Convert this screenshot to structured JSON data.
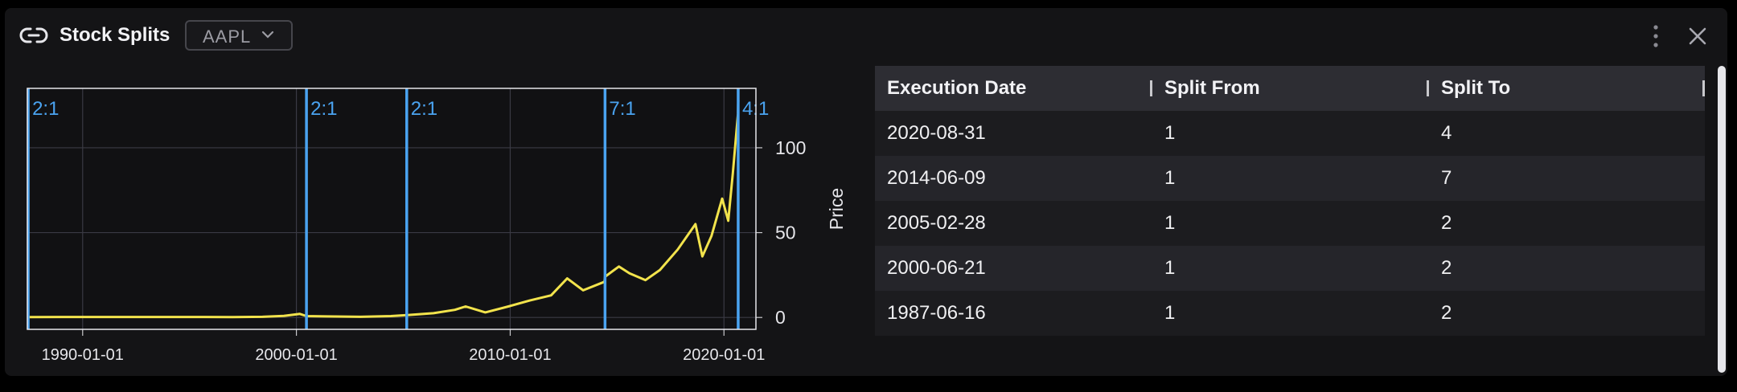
{
  "header": {
    "title": "Stock Splits",
    "ticker": "AAPL",
    "icons": {
      "link": "link-icon",
      "chevron": "chevron-down-icon",
      "menu": "kebab-menu-icon",
      "close": "close-icon"
    }
  },
  "chart_data": {
    "type": "line",
    "title": "",
    "xlabel": "",
    "ylabel": "Price",
    "x_ticks": [
      "1990-01-01",
      "2000-01-01",
      "2010-01-01",
      "2020-01-01"
    ],
    "y_ticks": [
      0,
      50,
      100
    ],
    "xlim": [
      "1987-06-01",
      "2021-06-30"
    ],
    "ylim": [
      -7,
      135
    ],
    "grid": true,
    "line_color": "#f2e34c",
    "split_color": "#4aa3f0",
    "splits": [
      {
        "date": "1987-06-16",
        "label": "2:1"
      },
      {
        "date": "2000-06-21",
        "label": "2:1"
      },
      {
        "date": "2005-02-28",
        "label": "2:1"
      },
      {
        "date": "2014-06-09",
        "label": "7:1"
      },
      {
        "date": "2020-08-31",
        "label": "4:1"
      }
    ],
    "series": [
      {
        "x": [
          "1987-06-16",
          "1989-01-01",
          "1991-01-01",
          "1993-01-01",
          "1995-01-01",
          "1997-01-01",
          "1998-06-01",
          "1999-06-01",
          "2000-03-01",
          "2000-06-21",
          "2001-06-01",
          "2003-01-01",
          "2004-06-01",
          "2005-02-28",
          "2006-06-01",
          "2007-06-01",
          "2007-12-01",
          "2008-11-01",
          "2009-12-01",
          "2010-12-01",
          "2011-12-01",
          "2012-09-01",
          "2013-06-01",
          "2014-05-30",
          "2014-06-09",
          "2015-02-01",
          "2015-08-01",
          "2016-05-01",
          "2017-01-01",
          "2017-11-01",
          "2018-09-01",
          "2018-12-28",
          "2019-06-01",
          "2019-12-01",
          "2020-03-15",
          "2020-06-01",
          "2020-08-28",
          "2020-08-31",
          "2020-09-02"
        ],
        "y": [
          0.2,
          0.3,
          0.3,
          0.3,
          0.3,
          0.2,
          0.4,
          0.9,
          2.1,
          0.8,
          0.6,
          0.4,
          0.8,
          1.4,
          2.5,
          4.5,
          6.5,
          3.0,
          6.5,
          10.0,
          13.0,
          23.0,
          16.0,
          21.0,
          24.0,
          30.0,
          26.0,
          22.0,
          28.0,
          40.0,
          55.0,
          36.0,
          48.0,
          70.0,
          57.0,
          85.0,
          120.0,
          125.0,
          128.0
        ]
      }
    ]
  },
  "table": {
    "columns": [
      "Execution Date",
      "Split From",
      "Split To"
    ],
    "rows": [
      [
        "2020-08-31",
        "1",
        "4"
      ],
      [
        "2014-06-09",
        "1",
        "7"
      ],
      [
        "2005-02-28",
        "1",
        "2"
      ],
      [
        "2000-06-21",
        "1",
        "2"
      ],
      [
        "1987-06-16",
        "1",
        "2"
      ]
    ]
  }
}
